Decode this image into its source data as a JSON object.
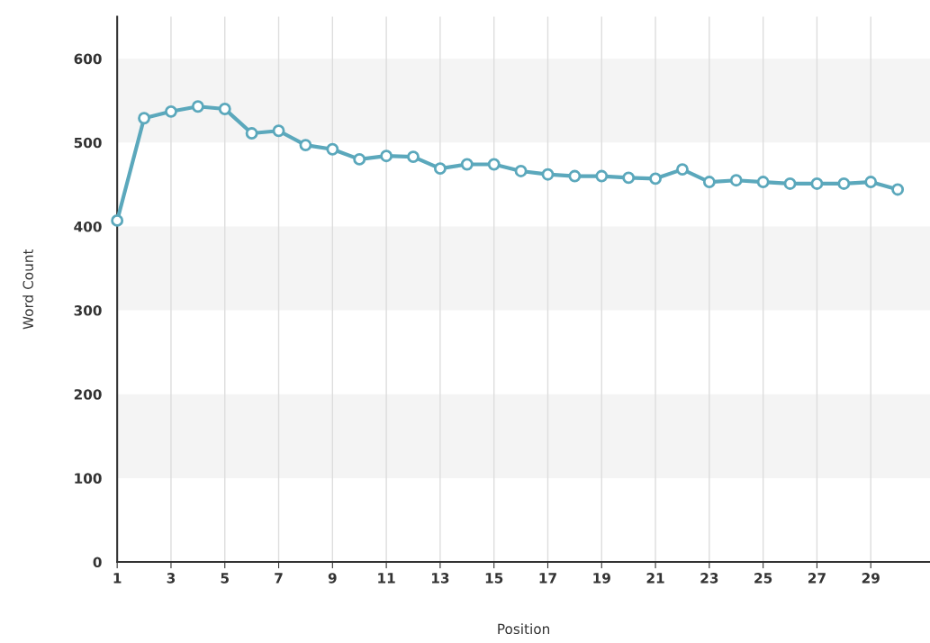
{
  "chart_data": {
    "type": "line",
    "xlabel": "Position",
    "ylabel": "Word Count",
    "x": [
      1,
      2,
      3,
      4,
      5,
      6,
      7,
      8,
      9,
      10,
      11,
      12,
      13,
      14,
      15,
      16,
      17,
      18,
      19,
      20,
      21,
      22,
      23,
      24,
      25,
      26,
      27,
      28,
      29,
      30
    ],
    "series": [
      {
        "color": "#5ba8bc",
        "values": [
          407,
          529,
          537,
          543,
          540,
          511,
          514,
          497,
          492,
          480,
          484,
          483,
          469,
          474,
          474,
          466,
          462,
          460,
          460,
          458,
          457,
          468,
          453,
          455,
          453,
          451,
          451,
          451,
          453,
          444
        ]
      }
    ],
    "xlim": [
      1,
      31.2
    ],
    "xticks": [
      1,
      3,
      5,
      7,
      9,
      11,
      13,
      15,
      17,
      19,
      21,
      23,
      25,
      27,
      29
    ],
    "ylim": [
      0,
      650
    ],
    "yticks": [
      0,
      100,
      200,
      300,
      400,
      500,
      600
    ],
    "bands": [
      {
        "axis": "y",
        "from": 100,
        "to": 200,
        "color": "#f4f4f4"
      },
      {
        "axis": "y",
        "from": 300,
        "to": 400,
        "color": "#f4f4f4"
      },
      {
        "axis": "y",
        "from": 500,
        "to": 600,
        "color": "#f4f4f4"
      }
    ],
    "grid": "x",
    "marker": "circle",
    "line_style": "solid",
    "legend": false
  }
}
